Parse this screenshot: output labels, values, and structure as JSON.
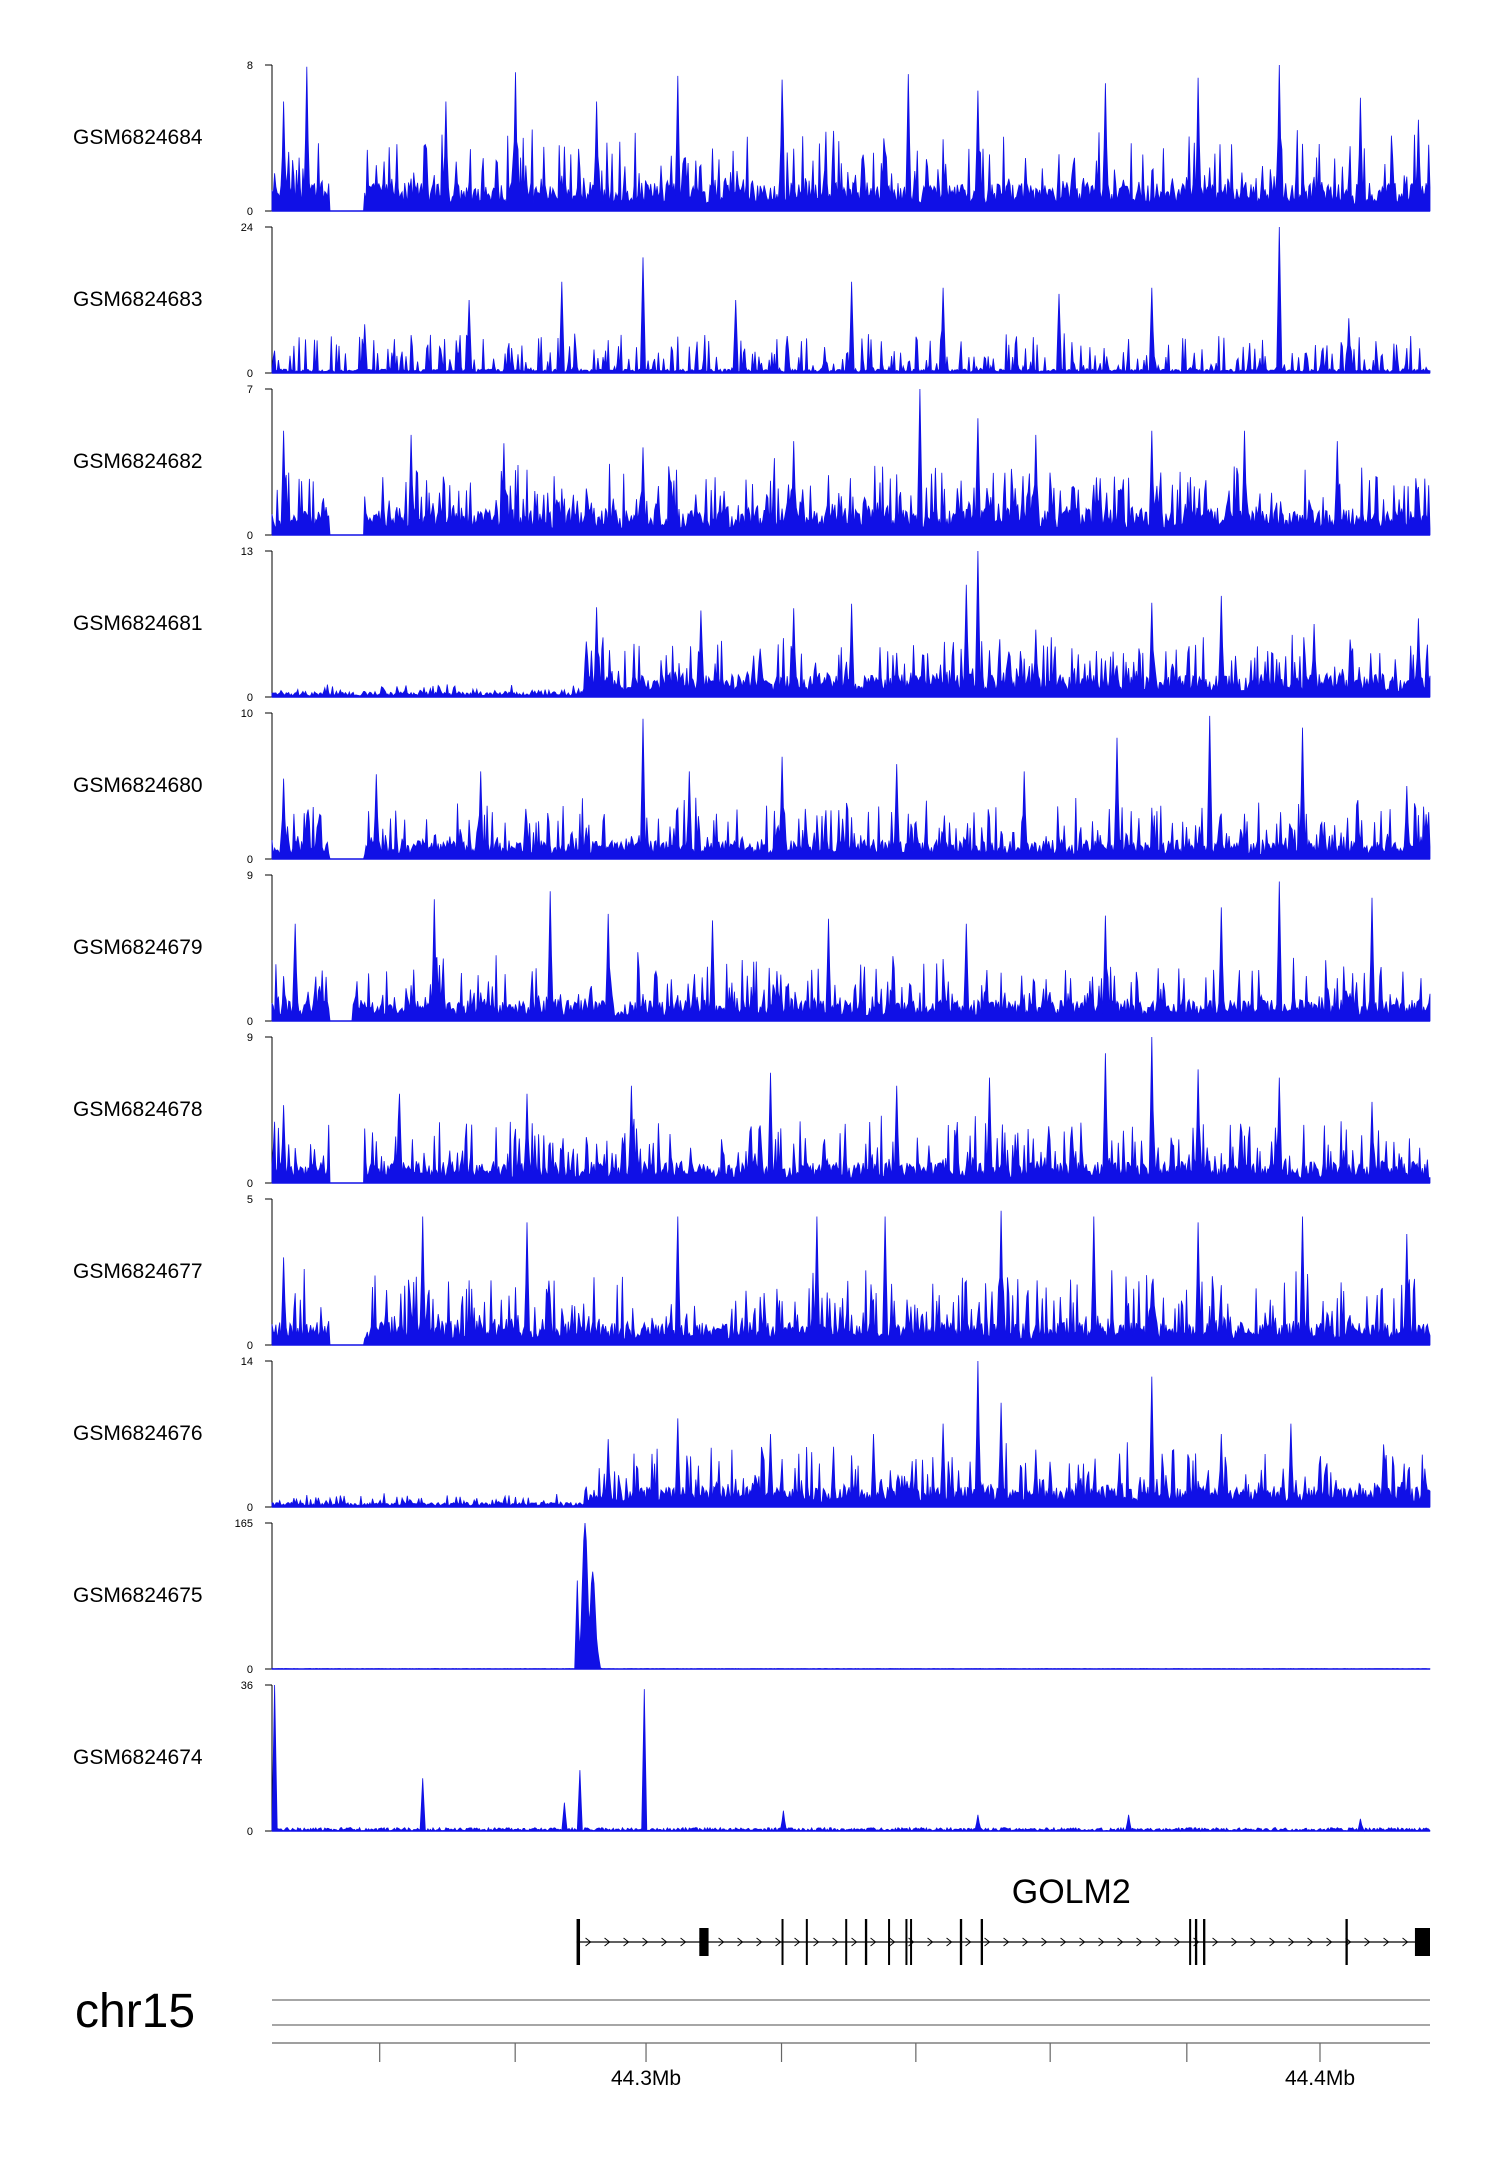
{
  "chart_data": {
    "type": "area",
    "title": "",
    "chromosome": "chr15",
    "colors": {
      "signal": "#1010E6",
      "axis": "#000000",
      "gene": "#000000"
    },
    "tracks": [
      {
        "name": "GSM6824684",
        "ymax": 8,
        "ymin": 0,
        "peaks": [
          [
            0.01,
            6
          ],
          [
            0.03,
            7.9
          ],
          [
            0.09,
            2.5
          ],
          [
            0.15,
            6
          ],
          [
            0.21,
            7.6
          ],
          [
            0.28,
            6
          ],
          [
            0.35,
            7.4
          ],
          [
            0.44,
            7.2
          ],
          [
            0.55,
            7.5
          ],
          [
            0.61,
            6.6
          ],
          [
            0.72,
            7
          ],
          [
            0.8,
            7.3
          ],
          [
            0.87,
            8
          ],
          [
            0.94,
            6.2
          ],
          [
            0.99,
            5
          ]
        ],
        "base": 1.2,
        "noise": 3.2,
        "gaps": [
          [
            0.05,
            0.08
          ]
        ]
      },
      {
        "name": "GSM6824683",
        "ymax": 24,
        "ymin": 0,
        "peaks": [
          [
            0.08,
            8
          ],
          [
            0.17,
            12
          ],
          [
            0.25,
            15
          ],
          [
            0.32,
            19
          ],
          [
            0.4,
            12
          ],
          [
            0.5,
            15
          ],
          [
            0.58,
            14
          ],
          [
            0.68,
            13
          ],
          [
            0.76,
            14
          ],
          [
            0.87,
            24
          ],
          [
            0.93,
            9
          ]
        ],
        "base": 0.5,
        "noise": 6,
        "spiky": true
      },
      {
        "name": "GSM6824682",
        "ymax": 7,
        "ymin": 0,
        "peaks": [
          [
            0.01,
            5
          ],
          [
            0.12,
            4.8
          ],
          [
            0.2,
            4.4
          ],
          [
            0.32,
            4.2
          ],
          [
            0.45,
            4.5
          ],
          [
            0.56,
            7
          ],
          [
            0.61,
            5.6
          ],
          [
            0.66,
            4.8
          ],
          [
            0.76,
            5
          ],
          [
            0.84,
            5
          ],
          [
            0.92,
            4.5
          ],
          [
            0.99,
            2.3
          ]
        ],
        "base": 1,
        "noise": 2.5,
        "gaps": [
          [
            0.05,
            0.08
          ]
        ]
      },
      {
        "name": "GSM6824681",
        "ymax": 13,
        "ymin": 0,
        "peaks": [
          [
            0.28,
            8
          ],
          [
            0.37,
            7.7
          ],
          [
            0.45,
            7.9
          ],
          [
            0.5,
            8.3
          ],
          [
            0.6,
            10
          ],
          [
            0.61,
            13
          ],
          [
            0.66,
            6
          ],
          [
            0.76,
            8.4
          ],
          [
            0.82,
            9
          ],
          [
            0.9,
            6.5
          ],
          [
            0.99,
            7
          ]
        ],
        "base": 1.5,
        "noise": 4,
        "lowRegion": [
          0,
          0.27
        ]
      },
      {
        "name": "GSM6824680",
        "ymax": 10,
        "ymin": 0,
        "peaks": [
          [
            0.01,
            5.5
          ],
          [
            0.09,
            5.8
          ],
          [
            0.18,
            6
          ],
          [
            0.32,
            9.6
          ],
          [
            0.36,
            6
          ],
          [
            0.44,
            7
          ],
          [
            0.54,
            6.5
          ],
          [
            0.65,
            6
          ],
          [
            0.73,
            8.3
          ],
          [
            0.81,
            9.8
          ],
          [
            0.89,
            9
          ],
          [
            0.98,
            5
          ]
        ],
        "base": 1,
        "noise": 3,
        "gaps": [
          [
            0.05,
            0.08
          ]
        ]
      },
      {
        "name": "GSM6824679",
        "ymax": 9,
        "ymin": 0,
        "peaks": [
          [
            0.02,
            6
          ],
          [
            0.14,
            7.5
          ],
          [
            0.24,
            8
          ],
          [
            0.29,
            6.6
          ],
          [
            0.38,
            6.2
          ],
          [
            0.48,
            6.3
          ],
          [
            0.6,
            6
          ],
          [
            0.72,
            6.5
          ],
          [
            0.82,
            7
          ],
          [
            0.87,
            8.6
          ],
          [
            0.95,
            7.6
          ]
        ],
        "base": 1,
        "noise": 3,
        "gaps": [
          [
            0.05,
            0.07
          ]
        ]
      },
      {
        "name": "GSM6824678",
        "ymax": 9,
        "ymin": 0,
        "peaks": [
          [
            0.01,
            4.8
          ],
          [
            0.11,
            5.5
          ],
          [
            0.22,
            5.5
          ],
          [
            0.31,
            6
          ],
          [
            0.43,
            6.8
          ],
          [
            0.54,
            6
          ],
          [
            0.62,
            6.5
          ],
          [
            0.72,
            8
          ],
          [
            0.76,
            9
          ],
          [
            0.8,
            7
          ],
          [
            0.87,
            6.5
          ],
          [
            0.95,
            5
          ]
        ],
        "base": 1,
        "noise": 3,
        "gaps": [
          [
            0.05,
            0.08
          ]
        ]
      },
      {
        "name": "GSM6824677",
        "ymax": 5,
        "ymin": 0,
        "peaks": [
          [
            0.01,
            3
          ],
          [
            0.13,
            4.4
          ],
          [
            0.22,
            4.2
          ],
          [
            0.35,
            4.4
          ],
          [
            0.47,
            4.4
          ],
          [
            0.53,
            4.4
          ],
          [
            0.63,
            4.6
          ],
          [
            0.71,
            4.4
          ],
          [
            0.8,
            4.2
          ],
          [
            0.89,
            4.4
          ],
          [
            0.98,
            3.8
          ]
        ],
        "base": 0.6,
        "noise": 1.9,
        "gaps": [
          [
            0.05,
            0.08
          ]
        ]
      },
      {
        "name": "GSM6824676",
        "ymax": 14,
        "ymin": 0,
        "peaks": [
          [
            0.29,
            6.5
          ],
          [
            0.35,
            8.5
          ],
          [
            0.43,
            7
          ],
          [
            0.52,
            7
          ],
          [
            0.58,
            8
          ],
          [
            0.61,
            14
          ],
          [
            0.63,
            10
          ],
          [
            0.66,
            5.5
          ],
          [
            0.76,
            12.5
          ],
          [
            0.82,
            7
          ],
          [
            0.88,
            8
          ],
          [
            0.96,
            6
          ]
        ],
        "base": 1.5,
        "noise": 4.5,
        "lowRegion": [
          0,
          0.27
        ]
      },
      {
        "name": "GSM6824675",
        "ymax": 165,
        "ymin": 0,
        "peaks": [
          [
            0.264,
            100
          ],
          [
            0.27,
            165
          ],
          [
            0.277,
            110
          ],
          [
            0.281,
            20
          ]
        ],
        "base": 0.4,
        "noise": 1.5,
        "sharp": true
      },
      {
        "name": "GSM6824674",
        "ymax": 36,
        "ymin": 0,
        "peaks": [
          [
            0.002,
            36
          ],
          [
            0.13,
            13
          ],
          [
            0.253,
            7
          ],
          [
            0.266,
            15
          ],
          [
            0.322,
            35
          ],
          [
            0.442,
            5
          ],
          [
            0.61,
            4
          ],
          [
            0.74,
            4
          ],
          [
            0.94,
            3
          ]
        ],
        "base": 0.6,
        "noise": 2.5,
        "sharp": true
      }
    ],
    "gene": {
      "name": "GOLM2",
      "start_frac": 0.263,
      "end_frac": 1.0,
      "exons": [
        [
          0.263,
          0.266
        ],
        [
          0.369,
          0.377
        ],
        [
          0.44,
          0.441
        ],
        [
          0.461,
          0.462
        ],
        [
          0.495,
          0.496
        ],
        [
          0.512,
          0.514
        ],
        [
          0.532,
          0.533
        ],
        [
          0.547,
          0.548
        ],
        [
          0.551,
          0.552
        ],
        [
          0.594,
          0.596
        ],
        [
          0.612,
          0.614
        ],
        [
          0.792,
          0.793
        ],
        [
          0.797,
          0.799
        ],
        [
          0.804,
          0.806
        ],
        [
          0.927,
          0.929
        ],
        [
          0.987,
          1.0
        ]
      ]
    },
    "x_axis": {
      "chromosome": "chr15",
      "tick_labels": [
        {
          "label": "44.3Mb",
          "frac": 0.323
        },
        {
          "label": "44.4Mb",
          "frac": 0.905
        }
      ],
      "minor_tick_fracs": [
        0.093,
        0.21,
        0.323,
        0.44,
        0.556,
        0.672,
        0.79,
        0.905
      ]
    }
  }
}
